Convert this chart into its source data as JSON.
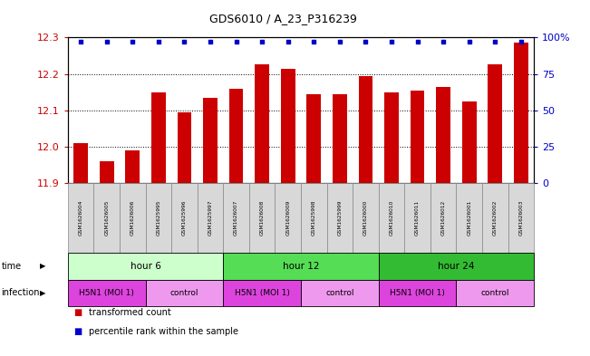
{
  "title": "GDS6010 / A_23_P316239",
  "samples": [
    "GSM1626004",
    "GSM1626005",
    "GSM1626006",
    "GSM1625995",
    "GSM1625996",
    "GSM1625997",
    "GSM1626007",
    "GSM1626008",
    "GSM1626009",
    "GSM1625998",
    "GSM1625999",
    "GSM1626000",
    "GSM1626010",
    "GSM1626011",
    "GSM1626012",
    "GSM1626001",
    "GSM1626002",
    "GSM1626003"
  ],
  "bar_values": [
    12.01,
    11.96,
    11.99,
    12.15,
    12.095,
    12.135,
    12.16,
    12.225,
    12.215,
    12.145,
    12.145,
    12.195,
    12.15,
    12.155,
    12.165,
    12.125,
    12.225,
    12.285
  ],
  "percentile_values": [
    97,
    97,
    97,
    97,
    97,
    97,
    97,
    97,
    97,
    97,
    97,
    97,
    97,
    97,
    97,
    97,
    97,
    97
  ],
  "ylim_left": [
    11.9,
    12.3
  ],
  "ylim_right": [
    0,
    100
  ],
  "yticks_left": [
    11.9,
    12.0,
    12.1,
    12.2,
    12.3
  ],
  "yticks_right": [
    0,
    25,
    50,
    75,
    100
  ],
  "bar_color": "#cc0000",
  "dot_color": "#0000cc",
  "grid_color": "#000000",
  "time_groups": [
    {
      "label": "hour 6",
      "start": 0,
      "end": 6,
      "color": "#ccffcc"
    },
    {
      "label": "hour 12",
      "start": 6,
      "end": 12,
      "color": "#55dd55"
    },
    {
      "label": "hour 24",
      "start": 12,
      "end": 18,
      "color": "#33bb33"
    }
  ],
  "infection_groups": [
    {
      "label": "H5N1 (MOI 1)",
      "start": 0,
      "end": 3,
      "color": "#dd44dd"
    },
    {
      "label": "control",
      "start": 3,
      "end": 6,
      "color": "#ee99ee"
    },
    {
      "label": "H5N1 (MOI 1)",
      "start": 6,
      "end": 9,
      "color": "#dd44dd"
    },
    {
      "label": "control",
      "start": 9,
      "end": 12,
      "color": "#ee99ee"
    },
    {
      "label": "H5N1 (MOI 1)",
      "start": 12,
      "end": 15,
      "color": "#dd44dd"
    },
    {
      "label": "control",
      "start": 15,
      "end": 18,
      "color": "#ee99ee"
    }
  ],
  "legend_bar_label": "transformed count",
  "legend_dot_label": "percentile rank within the sample",
  "xlabel_time": "time",
  "xlabel_infection": "infection",
  "sample_box_color": "#d8d8d8",
  "sample_box_edge": "#aaaaaa"
}
